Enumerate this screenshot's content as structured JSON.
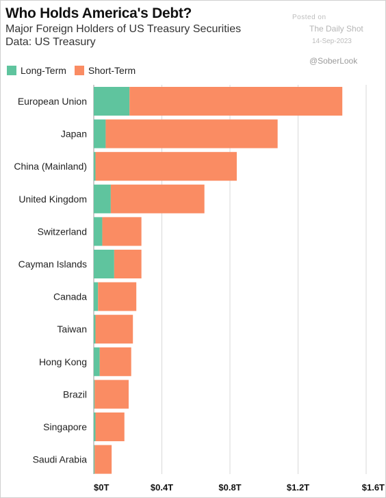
{
  "header": {
    "title": "Who Holds America's Debt?",
    "subtitle": "Major Foreign Holders of US Treasury Securities",
    "source": "Data: US Treasury",
    "watermark_posted": "Posted on",
    "watermark_site": "The Daily Shot",
    "watermark_date": "14-Sep-2023",
    "handle": "@SoberLook"
  },
  "legend": {
    "long_label": "Long-Term",
    "short_label": "Short-Term"
  },
  "colors": {
    "long_term": "#5fc49e",
    "short_term": "#fa8c63",
    "grid": "#d9d9d9"
  },
  "chart_data": {
    "type": "bar",
    "orientation": "horizontal",
    "stacked": true,
    "categories": [
      "European Union",
      "Japan",
      "China (Mainland)",
      "United Kingdom",
      "Switzerland",
      "Cayman Islands",
      "Canada",
      "Taiwan",
      "Hong Kong",
      "Brazil",
      "Singapore",
      "Saudi Arabia"
    ],
    "series": [
      {
        "name": "Long-Term",
        "values": [
          0.21,
          0.07,
          0.01,
          0.1,
          0.05,
          0.12,
          0.025,
          0.01,
          0.035,
          0.005,
          0.01,
          0.005
        ]
      },
      {
        "name": "Short-Term",
        "values": [
          1.25,
          1.01,
          0.83,
          0.55,
          0.23,
          0.16,
          0.225,
          0.22,
          0.185,
          0.2,
          0.17,
          0.1
        ]
      }
    ],
    "xlim": [
      0,
      1.6
    ],
    "xticks": [
      0,
      0.4,
      0.8,
      1.2,
      1.6
    ],
    "xtick_labels": [
      "$0T",
      "$0.4T",
      "$0.8T",
      "$1.2T",
      "$1.6T"
    ],
    "grid": true,
    "legend_position": "top-left"
  }
}
